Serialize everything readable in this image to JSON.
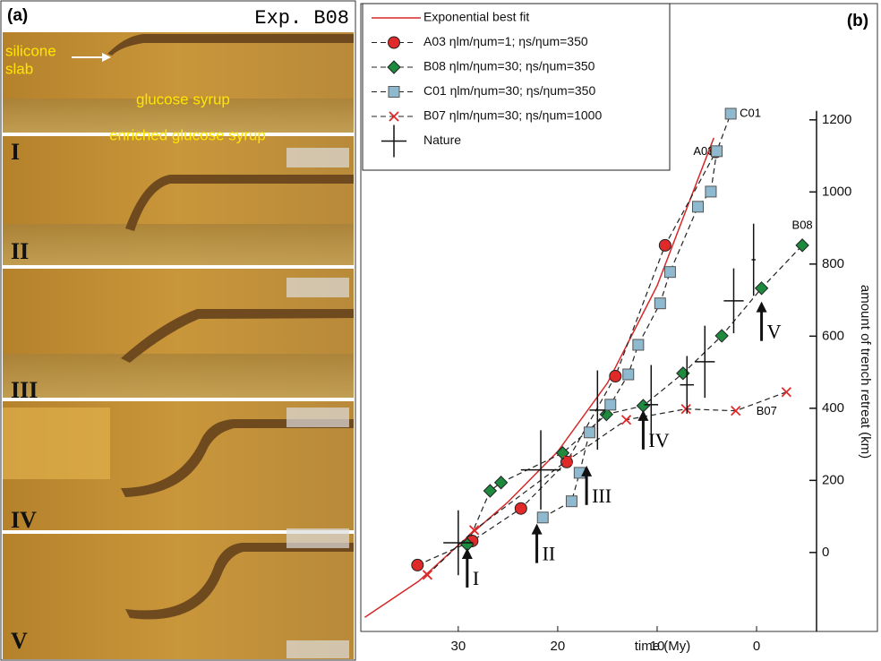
{
  "panel_a": {
    "label": "(a)",
    "experiment": "Exp. B08",
    "annotations": [
      "silicone",
      "slab",
      "glucose syrup",
      "enriched glucose syrup"
    ],
    "stages": [
      "I",
      "II",
      "III",
      "IV",
      "V"
    ]
  },
  "chart_data": {
    "type": "scatter",
    "panel_label": "(b)",
    "x_label": "time (My)",
    "y_label": "amount of trench retreat (km)",
    "xlim": [
      39.8,
      -5.4
    ],
    "xticks": [
      30,
      20,
      10,
      0
    ],
    "ylim": [
      -219,
      1520
    ],
    "yticks": [
      0,
      200,
      400,
      600,
      800,
      1000,
      1200
    ],
    "legend": "top-left",
    "series": [
      {
        "name": "Exponential best fit",
        "color": "#d62828",
        "marker": "none",
        "line": "solid",
        "x": [
          39.4,
          34,
          30,
          25,
          20,
          15,
          10,
          5,
          4.3
        ],
        "values": [
          -180,
          -80,
          20,
          140,
          280,
          470,
          740,
          1100,
          1150
        ]
      },
      {
        "name": "A03 ηlm/ηum=1; ηs/ηum=350",
        "label": "A03",
        "color": "#e02a2a",
        "marker": "circle",
        "line": "dashed",
        "x": [
          34.1,
          28.6,
          23.7,
          19.1,
          14.2,
          9.2,
          4.1
        ],
        "values": [
          -35,
          32,
          122,
          251,
          489,
          852,
          1111
        ]
      },
      {
        "name": "B08 ηlm/ηum=30; ηs/ηum=350",
        "label": "B08",
        "color": "#1e8a3e",
        "marker": "diamond",
        "line": "dashed",
        "x": [
          29.1,
          26.8,
          25.7,
          19.5,
          15.1,
          11.4,
          7.4,
          3.5,
          -0.5,
          -4.6
        ],
        "values": [
          22,
          171,
          194,
          276,
          383,
          407,
          497,
          601,
          733,
          852
        ]
      },
      {
        "name": "C01 ηlm/ηum=30; ηs/ηum=350",
        "label": "C01",
        "color": "#8fb9cf",
        "marker": "square",
        "line": "dashed",
        "x": [
          21.5,
          18.6,
          17.8,
          16.8,
          14.7,
          12.9,
          11.9,
          9.7,
          8.7,
          5.9,
          4.6,
          4.0,
          2.6
        ],
        "values": [
          97,
          142,
          221,
          333,
          410,
          494,
          576,
          691,
          778,
          959,
          1001,
          1113,
          1217
        ]
      },
      {
        "name": "B07 ηlm/ηum=30; ηs/ηum=1000",
        "label": "B07",
        "color": "#e02a2a",
        "marker": "x",
        "line": "dashed",
        "x": [
          33.1,
          28.4,
          19.0,
          13.1,
          7.1,
          2.1,
          -3.0
        ],
        "values": [
          -62,
          62,
          256,
          368,
          398,
          393,
          445
        ]
      },
      {
        "name": "Nature",
        "color": "#111111",
        "marker": "plus",
        "line": "none",
        "x": [
          30.0,
          21.7,
          16.0,
          10.6,
          7.0,
          5.2,
          2.3,
          0.3
        ],
        "values": [
          27,
          229,
          395,
          410,
          465,
          529,
          698,
          812
        ],
        "xerr": [
          1.5,
          2.0,
          0.8,
          0.7,
          0.7,
          1.0,
          1.0,
          0.2
        ],
        "yerr": [
          90,
          110,
          110,
          110,
          80,
          100,
          90,
          100
        ]
      }
    ],
    "arrows": [
      {
        "label": "I",
        "x": 29.1,
        "y": 12
      },
      {
        "label": "II",
        "x": 22.1,
        "y": 80
      },
      {
        "label": "III",
        "x": 17.1,
        "y": 241
      },
      {
        "label": "IV",
        "x": 11.4,
        "y": 395
      },
      {
        "label": "V",
        "x": -0.5,
        "y": 696
      }
    ]
  }
}
